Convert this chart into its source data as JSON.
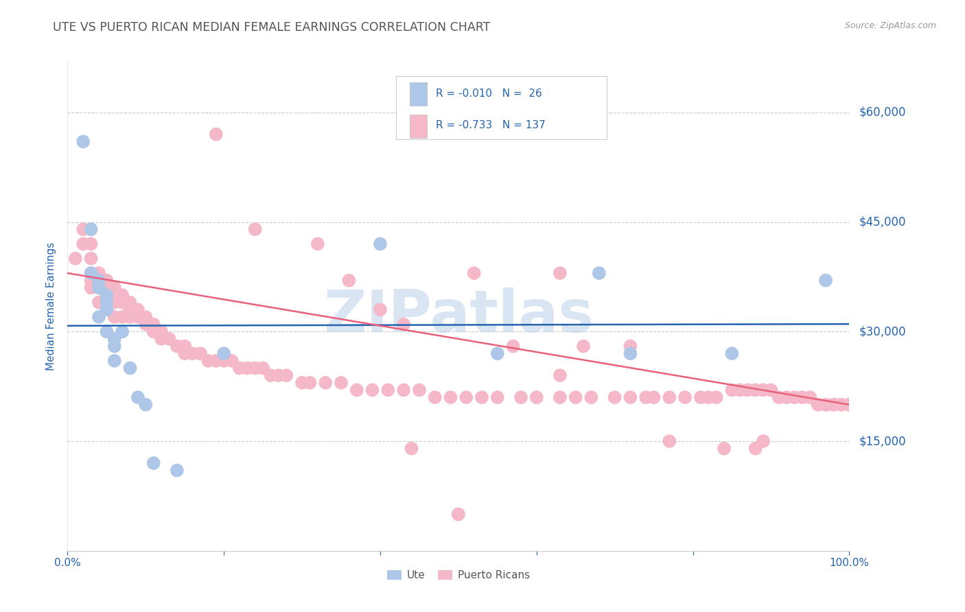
{
  "title": "UTE VS PUERTO RICAN MEDIAN FEMALE EARNINGS CORRELATION CHART",
  "source": "Source: ZipAtlas.com",
  "ylabel": "Median Female Earnings",
  "ytick_labels": [
    "$15,000",
    "$30,000",
    "$45,000",
    "$60,000"
  ],
  "ytick_values": [
    15000,
    30000,
    45000,
    60000
  ],
  "ymin": 0,
  "ymax": 67000,
  "xmin": 0.0,
  "xmax": 1.0,
  "watermark": "ZIPatlas",
  "ute_color": "#aec6e8",
  "pr_color": "#f5b8c8",
  "ute_line_color": "#2463ae",
  "pr_line_color": "#e8607a",
  "grid_color": "#cccccc",
  "title_color": "#555555",
  "axis_label_color": "#2463ae",
  "legend_text_color": "#333333",
  "legend_num_color": "#2463ae",
  "ute_x": [
    0.02,
    0.03,
    0.03,
    0.04,
    0.04,
    0.04,
    0.05,
    0.05,
    0.05,
    0.05,
    0.06,
    0.06,
    0.06,
    0.07,
    0.08,
    0.09,
    0.1,
    0.11,
    0.14,
    0.2,
    0.4,
    0.55,
    0.68,
    0.72,
    0.85,
    0.97
  ],
  "ute_y": [
    56000,
    44000,
    38000,
    37000,
    36000,
    32000,
    35000,
    34000,
    33000,
    30000,
    29000,
    28000,
    26000,
    30000,
    25000,
    21000,
    20000,
    12000,
    11000,
    27000,
    42000,
    27000,
    38000,
    27000,
    27000,
    37000
  ],
  "pr_x": [
    0.01,
    0.02,
    0.02,
    0.03,
    0.03,
    0.03,
    0.03,
    0.03,
    0.04,
    0.04,
    0.04,
    0.04,
    0.05,
    0.05,
    0.05,
    0.05,
    0.06,
    0.06,
    0.06,
    0.06,
    0.07,
    0.07,
    0.07,
    0.08,
    0.08,
    0.08,
    0.09,
    0.09,
    0.1,
    0.1,
    0.11,
    0.11,
    0.12,
    0.12,
    0.13,
    0.14,
    0.15,
    0.15,
    0.16,
    0.17,
    0.18,
    0.19,
    0.2,
    0.21,
    0.22,
    0.23,
    0.24,
    0.25,
    0.26,
    0.27,
    0.28,
    0.3,
    0.31,
    0.33,
    0.35,
    0.37,
    0.39,
    0.41,
    0.43,
    0.45,
    0.47,
    0.49,
    0.51,
    0.53,
    0.55,
    0.58,
    0.6,
    0.63,
    0.65,
    0.67,
    0.7,
    0.72,
    0.74,
    0.75,
    0.77,
    0.79,
    0.81,
    0.82,
    0.83,
    0.85,
    0.86,
    0.87,
    0.88,
    0.89,
    0.9,
    0.91,
    0.92,
    0.93,
    0.94,
    0.95,
    0.96,
    0.97,
    0.97,
    0.97,
    0.98,
    0.98,
    0.98,
    0.99,
    0.99,
    0.99,
    1.0,
    1.0,
    1.0,
    1.0,
    0.19,
    0.24,
    0.32,
    0.36,
    0.4,
    0.43,
    0.44,
    0.5,
    0.52,
    0.57,
    0.63,
    0.66,
    0.72,
    0.77,
    0.84,
    0.88,
    0.89,
    0.5,
    0.63
  ],
  "pr_y": [
    40000,
    44000,
    42000,
    42000,
    40000,
    38000,
    37000,
    36000,
    38000,
    37000,
    36000,
    34000,
    37000,
    36000,
    35000,
    34000,
    36000,
    35000,
    34000,
    32000,
    35000,
    34000,
    32000,
    34000,
    33000,
    32000,
    33000,
    32000,
    32000,
    31000,
    31000,
    30000,
    30000,
    29000,
    29000,
    28000,
    28000,
    27000,
    27000,
    27000,
    26000,
    26000,
    26000,
    26000,
    25000,
    25000,
    25000,
    25000,
    24000,
    24000,
    24000,
    23000,
    23000,
    23000,
    23000,
    22000,
    22000,
    22000,
    22000,
    22000,
    21000,
    21000,
    21000,
    21000,
    21000,
    21000,
    21000,
    21000,
    21000,
    21000,
    21000,
    21000,
    21000,
    21000,
    21000,
    21000,
    21000,
    21000,
    21000,
    22000,
    22000,
    22000,
    22000,
    22000,
    22000,
    21000,
    21000,
    21000,
    21000,
    21000,
    20000,
    20000,
    20000,
    20000,
    20000,
    20000,
    20000,
    20000,
    20000,
    20000,
    20000,
    20000,
    20000,
    20000,
    57000,
    44000,
    42000,
    37000,
    33000,
    31000,
    14000,
    5000,
    38000,
    28000,
    24000,
    28000,
    28000,
    15000,
    14000,
    14000,
    15000,
    5000,
    38000
  ]
}
